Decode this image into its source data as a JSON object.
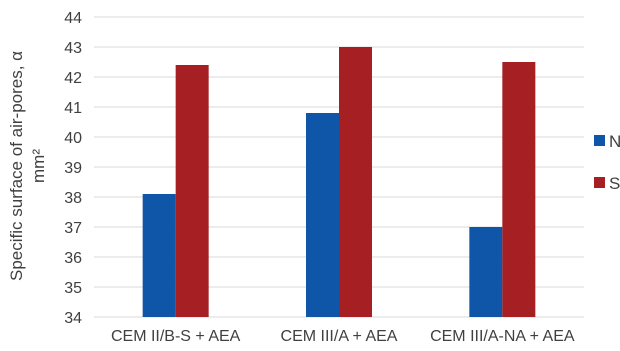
{
  "chart_data": {
    "type": "bar",
    "categories": [
      "CEM II/B-S + AEA",
      "CEM III/A + AEA",
      "CEM III/A-NA + AEA"
    ],
    "series": [
      {
        "name": "N",
        "color": "#0f56a8",
        "values": [
          38.1,
          40.8,
          37.0
        ]
      },
      {
        "name": "S",
        "color": "#a51f23",
        "values": [
          42.4,
          43.0,
          42.5
        ]
      }
    ],
    "ylabel_line1": "Specific surface of air-pores, α",
    "ylabel_line2": "mm²",
    "ylim": [
      34,
      44
    ],
    "yticks": [
      34,
      35,
      36,
      37,
      38,
      39,
      40,
      41,
      42,
      43,
      44
    ],
    "grid": true,
    "legend_position": "right"
  }
}
